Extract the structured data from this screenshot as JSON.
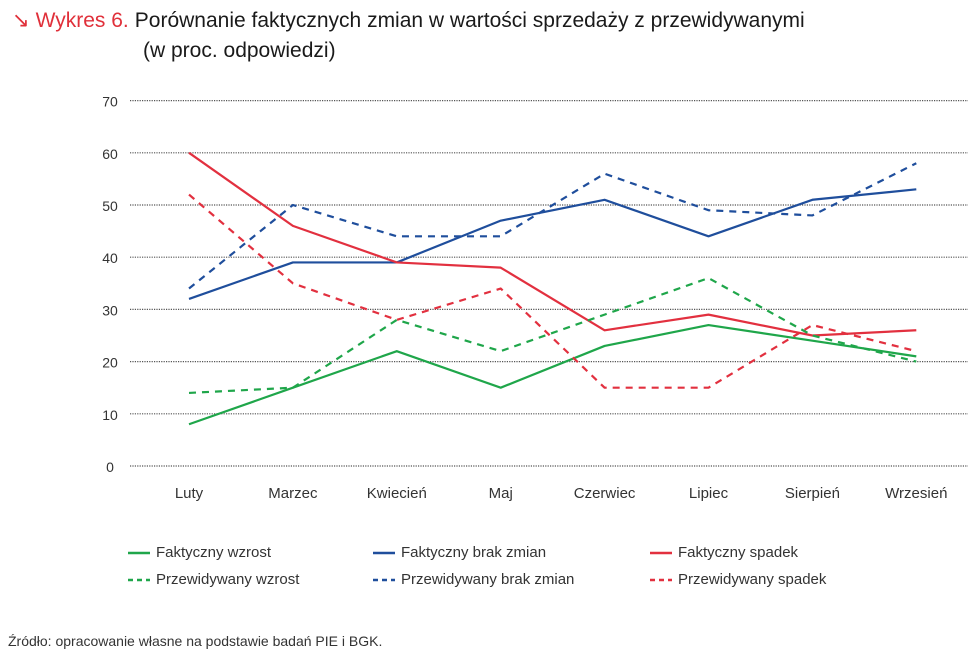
{
  "title": {
    "arrow": "↘",
    "label": "Wykres 6.",
    "line1": "Porównanie faktycznych zmian w wartości sprzedaży z przewidywanymi",
    "line2": "(w proc. odpowiedzi)"
  },
  "source": "Źródło: opracowanie własne na podstawie badań PIE i BGK.",
  "chart_data": {
    "type": "line",
    "title": "Porównanie faktycznych zmian w wartości sprzedaży z przewidywanymi (w proc. odpowiedzi)",
    "categories": [
      "Luty",
      "Marzec",
      "Kwiecień",
      "Maj",
      "Czerwiec",
      "Lipiec",
      "Sierpień",
      "Wrzesień"
    ],
    "ylim": [
      0,
      70
    ],
    "yticks": [
      "0",
      "10",
      "20",
      "30",
      "40",
      "50",
      "60",
      "70"
    ],
    "grid": true,
    "legend_position": "bottom",
    "series": [
      {
        "name": "Faktyczny wzrost",
        "color": "#1fa64a",
        "dash": false,
        "values": [
          8,
          15,
          22,
          15,
          23,
          27,
          24,
          21
        ]
      },
      {
        "name": "Faktyczny brak zmian",
        "color": "#1f4e9c",
        "dash": false,
        "values": [
          32,
          39,
          39,
          47,
          51,
          44,
          51,
          53
        ]
      },
      {
        "name": "Faktyczny spadek",
        "color": "#e2303f",
        "dash": false,
        "values": [
          60,
          46,
          39,
          38,
          26,
          29,
          25,
          26
        ]
      },
      {
        "name": "Przewidywany wzrost",
        "color": "#1fa64a",
        "dash": true,
        "values": [
          14,
          15,
          28,
          22,
          29,
          36,
          25,
          20
        ]
      },
      {
        "name": "Przewidywany brak zmian",
        "color": "#1f4e9c",
        "dash": true,
        "values": [
          34,
          50,
          44,
          44,
          56,
          49,
          48,
          58
        ]
      },
      {
        "name": "Przewidywany spadek",
        "color": "#e2303f",
        "dash": true,
        "values": [
          52,
          35,
          28,
          34,
          15,
          15,
          27,
          22
        ]
      }
    ]
  }
}
